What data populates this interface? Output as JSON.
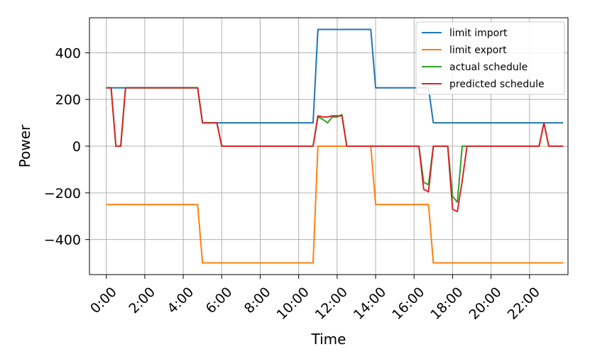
{
  "chart_data": {
    "type": "line",
    "title": "",
    "xlabel": "Time",
    "ylabel": "Power",
    "xlim": [
      -0.875,
      24.0
    ],
    "ylim": [
      -550,
      550
    ],
    "grid": true,
    "legend_position": "top-right",
    "x_ticks": [
      0,
      2,
      4,
      6,
      8,
      10,
      12,
      14,
      16,
      18,
      20,
      22
    ],
    "x_tick_labels": [
      "0:00",
      "2:00",
      "4:00",
      "6:00",
      "8:00",
      "10:00",
      "12:00",
      "14:00",
      "16:00",
      "18:00",
      "20:00",
      "22:00"
    ],
    "y_ticks": [
      -400,
      -200,
      0,
      200,
      400
    ],
    "y_tick_labels": [
      "−400",
      "−200",
      "0",
      "200",
      "400"
    ],
    "series": [
      {
        "name": "limit import",
        "color": "#1f77b4",
        "x": [
          0,
          4.75,
          5.0,
          10.75,
          11.0,
          13.75,
          14.0,
          16.75,
          17.0,
          23.75
        ],
        "y": [
          250,
          250,
          100,
          100,
          500,
          500,
          250,
          250,
          100,
          100
        ]
      },
      {
        "name": "limit export",
        "color": "#ff7f0e",
        "x": [
          0,
          4.75,
          5.0,
          10.75,
          11.0,
          13.75,
          14.0,
          16.75,
          17.0,
          23.75
        ],
        "y": [
          -250,
          -250,
          -500,
          -500,
          0,
          0,
          -250,
          -250,
          -500,
          -500
        ]
      },
      {
        "name": "actual schedule",
        "color": "#2ca02c",
        "x": [
          0,
          0.25,
          0.5,
          0.75,
          1.0,
          4.75,
          5.0,
          5.75,
          6.0,
          10.75,
          11.0,
          11.25,
          11.5,
          11.75,
          12.0,
          12.25,
          12.5,
          16.25,
          16.5,
          16.75,
          17.0,
          17.75,
          18.0,
          18.25,
          18.5,
          18.75,
          22.5,
          22.75,
          23.0,
          23.75
        ],
        "y": [
          250,
          250,
          0,
          0,
          250,
          250,
          100,
          100,
          0,
          0,
          125,
          115,
          100,
          125,
          125,
          135,
          0,
          0,
          -155,
          -165,
          0,
          0,
          -215,
          -240,
          0,
          0,
          0,
          100,
          0,
          0
        ]
      },
      {
        "name": "predicted schedule",
        "color": "#d62728",
        "x": [
          0,
          0.25,
          0.5,
          0.75,
          1.0,
          4.75,
          5.0,
          5.75,
          6.0,
          10.75,
          11.0,
          11.25,
          11.5,
          11.75,
          12.0,
          12.25,
          12.5,
          16.25,
          16.5,
          16.75,
          17.0,
          17.75,
          18.0,
          18.25,
          18.5,
          18.75,
          22.5,
          22.75,
          23.0,
          23.75
        ],
        "y": [
          250,
          250,
          0,
          0,
          250,
          250,
          100,
          100,
          0,
          0,
          130,
          125,
          125,
          130,
          130,
          130,
          0,
          0,
          -185,
          -195,
          0,
          0,
          -270,
          -280,
          -150,
          0,
          0,
          100,
          0,
          0
        ]
      }
    ]
  }
}
